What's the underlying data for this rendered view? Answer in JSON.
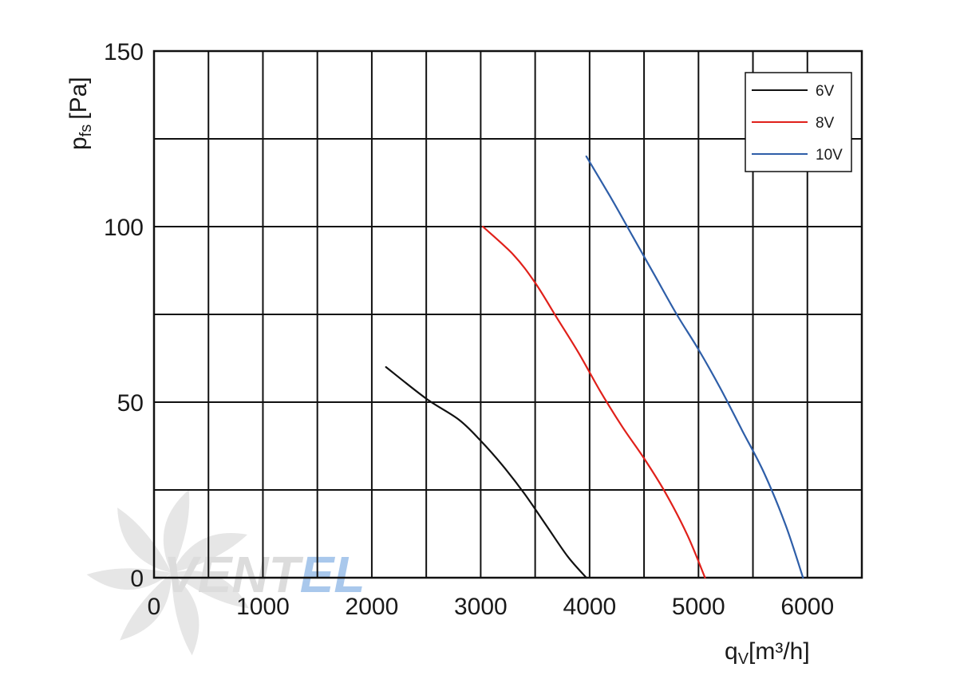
{
  "chart_data": {
    "type": "line",
    "xlabel_main": "q",
    "xlabel_sub": "V",
    "xlabel_unit": "[m³/h]",
    "ylabel_main": "p",
    "ylabel_sub": "fs",
    "ylabel_unit": "[Pa]",
    "xlim": [
      0,
      6500
    ],
    "ylim": [
      0,
      150
    ],
    "x_gridlines": [
      0,
      500,
      1000,
      1500,
      2000,
      2500,
      3000,
      3500,
      4000,
      4500,
      5000,
      5500,
      6000,
      6500
    ],
    "y_gridlines": [
      0,
      25,
      50,
      75,
      100,
      125,
      150
    ],
    "x_ticks": [
      0,
      1000,
      2000,
      3000,
      4000,
      5000,
      6000
    ],
    "x_tick_labels": [
      "0",
      "1000",
      "2000",
      "3000",
      "4000",
      "5000",
      "6000"
    ],
    "y_ticks": [
      0,
      50,
      100,
      150
    ],
    "y_tick_labels": [
      "0",
      "50",
      "100",
      "150"
    ],
    "grid": true,
    "legend_position": "top-right",
    "series": [
      {
        "name": "6V",
        "color": "#111111",
        "points": [
          [
            2130,
            60
          ],
          [
            2500,
            51
          ],
          [
            2800,
            45
          ],
          [
            3000,
            39
          ],
          [
            3200,
            32
          ],
          [
            3400,
            24
          ],
          [
            3600,
            15
          ],
          [
            3800,
            6
          ],
          [
            3970,
            0
          ]
        ]
      },
      {
        "name": "8V",
        "color": "#e0201a",
        "points": [
          [
            3020,
            100
          ],
          [
            3300,
            92
          ],
          [
            3500,
            84
          ],
          [
            3700,
            74
          ],
          [
            3900,
            64
          ],
          [
            4100,
            53
          ],
          [
            4300,
            43
          ],
          [
            4500,
            34
          ],
          [
            4700,
            24
          ],
          [
            4900,
            12
          ],
          [
            5060,
            0
          ]
        ]
      },
      {
        "name": "10V",
        "color": "#2e5ea8",
        "points": [
          [
            3970,
            120
          ],
          [
            4200,
            108
          ],
          [
            4400,
            97
          ],
          [
            4600,
            86
          ],
          [
            4800,
            75
          ],
          [
            5000,
            65
          ],
          [
            5200,
            54
          ],
          [
            5400,
            42
          ],
          [
            5600,
            30
          ],
          [
            5800,
            15
          ],
          [
            5960,
            0
          ]
        ]
      }
    ]
  },
  "watermark": {
    "text_main": "VENT",
    "text_accent": "EL",
    "color_main": "#dcdcdc",
    "color_accent": "#a9c8ec"
  }
}
